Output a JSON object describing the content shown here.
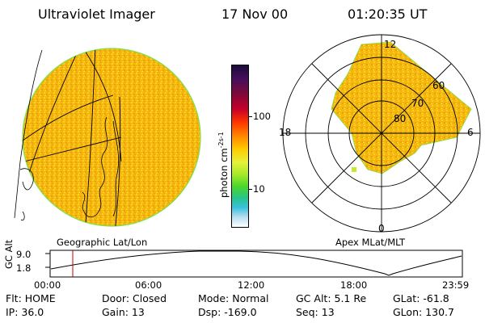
{
  "header": {
    "title": "Ultraviolet Imager",
    "date": "17 Nov 00",
    "time": "01:20:35 UT"
  },
  "captions": {
    "left": "Geographic Lat/Lon",
    "right": "Apex MLat/MLT"
  },
  "colorbar": {
    "units": "photon cm",
    "units_sup": "-2s-1",
    "labels": [
      "100",
      "10"
    ],
    "colors": [
      "#1a0b3e",
      "#c5002a",
      "#ff8800",
      "#ffcc00",
      "#a2e82a",
      "#39c2dc",
      "#ffffff"
    ]
  },
  "polar": {
    "mlt_labels": [
      "12",
      "18",
      "6",
      "0"
    ],
    "mlat_labels": [
      "60",
      "70",
      "80"
    ]
  },
  "altitude": {
    "axis_title": "GC Alt",
    "y_labels": [
      "9.0",
      "1.8"
    ],
    "time_labels": [
      "00:00",
      "06:00",
      "12:00",
      "18:00",
      "23:59"
    ],
    "marker_color": "#c00000"
  },
  "info": {
    "flt": "Flt: HOME",
    "ip": "IP: 36.0",
    "door": "Door: Closed",
    "gain": "Gain: 13",
    "mode": "Mode: Normal",
    "dsp": "Dsp: -169.0",
    "gc_alt": "GC Alt: 5.1 Re",
    "seq": "Seq: 13",
    "glat": "GLat: -61.8",
    "glon": "GLon: 130.7"
  }
}
